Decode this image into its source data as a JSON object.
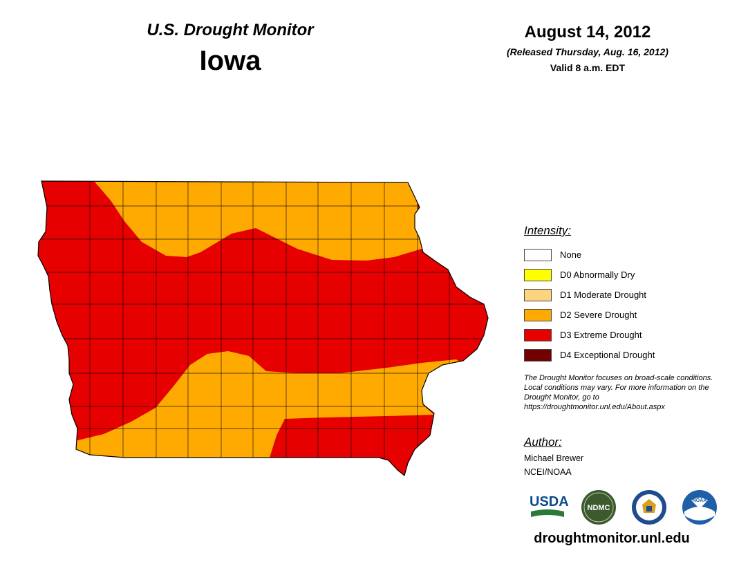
{
  "header": {
    "monitor_title": "U.S. Drought Monitor",
    "state": "Iowa",
    "date": "August 14, 2012",
    "released": "(Released Thursday, Aug. 16, 2012)",
    "valid": "Valid 8 a.m. EDT"
  },
  "legend": {
    "title": "Intensity:",
    "items": [
      {
        "label": "None",
        "color": "#ffffff"
      },
      {
        "label": "D0 Abnormally Dry",
        "color": "#ffff00"
      },
      {
        "label": "D1 Moderate Drought",
        "color": "#fcd37f"
      },
      {
        "label": "D2 Severe Drought",
        "color": "#ffaa00"
      },
      {
        "label": "D3 Extreme Drought",
        "color": "#e60000"
      },
      {
        "label": "D4 Exceptional Drought",
        "color": "#730000"
      }
    ]
  },
  "note": "The Drought Monitor focuses on broad-scale conditions. Local conditions may vary. For more information on the Drought Monitor, go to https://droughtmonitor.unl.edu/About.aspx",
  "author": {
    "title": "Author:",
    "name": "Michael Brewer",
    "org": "NCEI/NOAA"
  },
  "logos": {
    "usda": "USDA",
    "ndmc": "NDMC",
    "noaa": "NOAA"
  },
  "website": "droughtmonitor.unl.edu",
  "map": {
    "regions": [
      {
        "name": "north-central",
        "category": "D2 Severe Drought"
      },
      {
        "name": "west-and-central-east",
        "category": "D3 Extreme Drought"
      },
      {
        "name": "south-central",
        "category": "D2 Severe Drought"
      },
      {
        "name": "southeast",
        "category": "D3 Extreme Drought"
      }
    ]
  }
}
